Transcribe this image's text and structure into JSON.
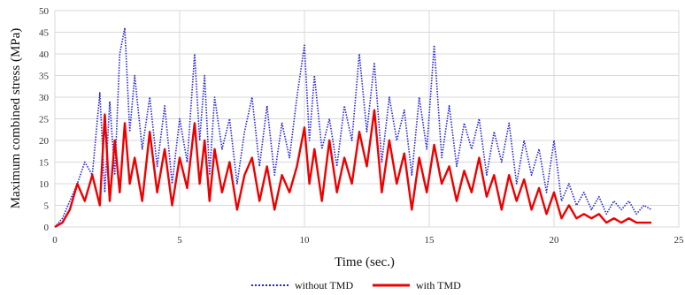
{
  "chart_data": {
    "type": "line",
    "xlabel": "Time (sec.)",
    "ylabel": "Maximum combined stress (MPa)",
    "xlim": [
      0,
      25
    ],
    "ylim": [
      0,
      50
    ],
    "xticks": [
      0,
      5,
      10,
      15,
      20,
      25
    ],
    "yticks": [
      0,
      5,
      10,
      15,
      20,
      25,
      30,
      35,
      40,
      45,
      50
    ],
    "grid": true,
    "legend_position": "bottom-center",
    "series": [
      {
        "name": "without TMD",
        "color": "#2222dd",
        "style": "dotted",
        "x": [
          0,
          0.3,
          0.6,
          0.9,
          1.2,
          1.5,
          1.8,
          2.0,
          2.2,
          2.4,
          2.6,
          2.8,
          3.0,
          3.2,
          3.5,
          3.8,
          4.1,
          4.4,
          4.7,
          5.0,
          5.3,
          5.6,
          5.8,
          6.0,
          6.2,
          6.4,
          6.7,
          7.0,
          7.3,
          7.6,
          7.9,
          8.2,
          8.5,
          8.8,
          9.1,
          9.4,
          9.7,
          10.0,
          10.2,
          10.4,
          10.7,
          11.0,
          11.3,
          11.6,
          11.9,
          12.2,
          12.5,
          12.8,
          13.1,
          13.4,
          13.7,
          14.0,
          14.3,
          14.6,
          14.9,
          15.2,
          15.5,
          15.8,
          16.1,
          16.4,
          16.7,
          17.0,
          17.3,
          17.6,
          17.9,
          18.2,
          18.5,
          18.8,
          19.1,
          19.4,
          19.7,
          20.0,
          20.3,
          20.6,
          20.9,
          21.2,
          21.5,
          21.8,
          22.1,
          22.4,
          22.7,
          23.0,
          23.3,
          23.6,
          23.9
        ],
        "values": [
          0,
          2,
          6,
          10,
          15,
          12,
          31,
          8,
          29,
          12,
          40,
          46,
          22,
          35,
          18,
          30,
          14,
          28,
          10,
          25,
          15,
          40,
          20,
          35,
          12,
          30,
          18,
          25,
          10,
          22,
          30,
          14,
          28,
          12,
          24,
          16,
          30,
          42,
          20,
          35,
          18,
          25,
          14,
          28,
          20,
          40,
          22,
          38,
          15,
          30,
          20,
          27,
          12,
          30,
          18,
          42,
          16,
          28,
          14,
          24,
          18,
          25,
          12,
          22,
          15,
          24,
          10,
          20,
          12,
          18,
          8,
          20,
          6,
          10,
          5,
          8,
          4,
          7,
          3,
          6,
          4,
          6,
          3,
          5,
          4
        ]
      },
      {
        "name": "with TMD",
        "color": "#ee0000",
        "style": "solid",
        "x": [
          0,
          0.3,
          0.6,
          0.9,
          1.2,
          1.5,
          1.8,
          2.0,
          2.2,
          2.4,
          2.6,
          2.8,
          3.0,
          3.2,
          3.5,
          3.8,
          4.1,
          4.4,
          4.7,
          5.0,
          5.3,
          5.6,
          5.8,
          6.0,
          6.2,
          6.4,
          6.7,
          7.0,
          7.3,
          7.6,
          7.9,
          8.2,
          8.5,
          8.8,
          9.1,
          9.4,
          9.7,
          10.0,
          10.2,
          10.4,
          10.7,
          11.0,
          11.3,
          11.6,
          11.9,
          12.2,
          12.5,
          12.8,
          13.1,
          13.4,
          13.7,
          14.0,
          14.3,
          14.6,
          14.9,
          15.2,
          15.5,
          15.8,
          16.1,
          16.4,
          16.7,
          17.0,
          17.3,
          17.6,
          17.9,
          18.2,
          18.5,
          18.8,
          19.1,
          19.4,
          19.7,
          20.0,
          20.3,
          20.6,
          20.9,
          21.2,
          21.5,
          21.8,
          22.1,
          22.4,
          22.7,
          23.0,
          23.3,
          23.6,
          23.9
        ],
        "values": [
          0,
          1,
          4,
          10,
          6,
          12,
          5,
          26,
          6,
          20,
          8,
          24,
          10,
          16,
          6,
          22,
          8,
          18,
          5,
          16,
          9,
          24,
          10,
          20,
          6,
          18,
          8,
          15,
          4,
          12,
          16,
          6,
          14,
          4,
          12,
          8,
          14,
          23,
          10,
          18,
          6,
          20,
          8,
          16,
          10,
          22,
          14,
          27,
          8,
          20,
          10,
          17,
          4,
          16,
          8,
          19,
          10,
          14,
          6,
          13,
          8,
          16,
          7,
          12,
          4,
          12,
          6,
          11,
          4,
          9,
          3,
          8,
          2,
          5,
          2,
          3,
          2,
          3,
          1,
          2,
          1,
          2,
          1,
          1,
          1
        ]
      }
    ]
  }
}
